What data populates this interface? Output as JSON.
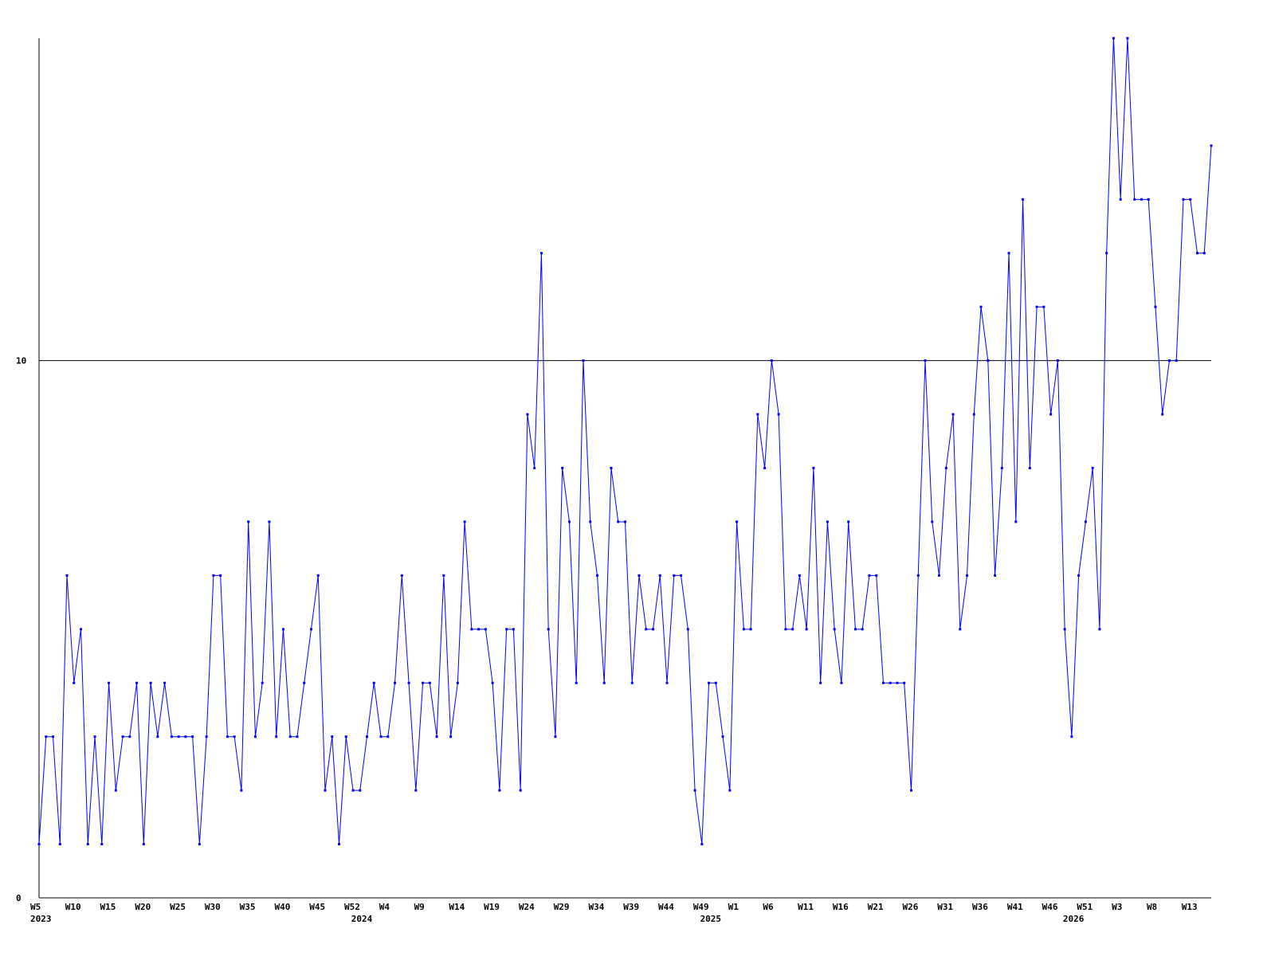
{
  "chart_data": {
    "type": "line",
    "categories": [
      "W5",
      null,
      null,
      null,
      null,
      "W10",
      null,
      null,
      null,
      null,
      "W15",
      null,
      null,
      null,
      null,
      "W20",
      null,
      null,
      null,
      null,
      "W25",
      null,
      null,
      null,
      null,
      "W30",
      null,
      null,
      null,
      null,
      "W35",
      null,
      null,
      null,
      null,
      "W40",
      null,
      null,
      null,
      null,
      "W45",
      null,
      null,
      null,
      null,
      "W52",
      null,
      null,
      null,
      null,
      "W4",
      null,
      null,
      null,
      null,
      "W9",
      null,
      null,
      null,
      null,
      "W14",
      null,
      null,
      null,
      null,
      "W19",
      null,
      null,
      null,
      null,
      "W24",
      null,
      null,
      null,
      null,
      "W29",
      null,
      null,
      null,
      null,
      "W34",
      null,
      null,
      null,
      null,
      "W39",
      null,
      null,
      null,
      null,
      "W44",
      null,
      null,
      null,
      null,
      "W49",
      null,
      null,
      null,
      null,
      "W1",
      null,
      null,
      null,
      null,
      "W6",
      null,
      null,
      null,
      null,
      "W11",
      null,
      null,
      null,
      null,
      "W16",
      null,
      null,
      null,
      null,
      "W21",
      null,
      null,
      null,
      null,
      "W26",
      null,
      null,
      null,
      null,
      "W31",
      null,
      null,
      null,
      null,
      "W36",
      null,
      null,
      null,
      null,
      "W41",
      null,
      null,
      null,
      null,
      "W46",
      null,
      null,
      null,
      null,
      "W51",
      null,
      null,
      null,
      null,
      "W3",
      null,
      null,
      null,
      null,
      "W8",
      null,
      null,
      null,
      null,
      "W13",
      null,
      null,
      null
    ],
    "years": [
      "2023",
      null,
      null,
      null,
      null,
      null,
      null,
      null,
      null,
      null,
      null,
      null,
      null,
      null,
      null,
      null,
      null,
      null,
      null,
      null,
      null,
      null,
      null,
      null,
      null,
      null,
      null,
      null,
      null,
      null,
      null,
      null,
      null,
      null,
      null,
      null,
      null,
      null,
      null,
      null,
      null,
      null,
      null,
      null,
      null,
      null,
      "2024",
      null,
      null,
      null,
      null,
      null,
      null,
      null,
      null,
      null,
      null,
      null,
      null,
      null,
      null,
      null,
      null,
      null,
      null,
      null,
      null,
      null,
      null,
      null,
      null,
      null,
      null,
      null,
      null,
      null,
      null,
      null,
      null,
      null,
      null,
      null,
      null,
      null,
      null,
      null,
      null,
      null,
      null,
      null,
      null,
      null,
      null,
      null,
      null,
      null,
      "2025",
      null,
      null,
      null,
      null,
      null,
      null,
      null,
      null,
      null,
      null,
      null,
      null,
      null,
      null,
      null,
      null,
      null,
      null,
      null,
      null,
      null,
      null,
      null,
      null,
      null,
      null,
      null,
      null,
      null,
      null,
      null,
      null,
      null,
      null,
      null,
      null,
      null,
      null,
      null,
      null,
      null,
      null,
      null,
      null,
      null,
      null,
      null,
      null,
      null,
      null,
      null,
      "2026",
      null,
      null,
      null,
      null,
      null,
      null,
      null,
      null,
      null,
      null,
      null,
      null,
      null,
      null,
      null,
      null
    ],
    "values": [
      1,
      3,
      3,
      1,
      6,
      4,
      5,
      1,
      3,
      1,
      4,
      2,
      3,
      3,
      4,
      1,
      4,
      3,
      4,
      3,
      3,
      3,
      3,
      1,
      3,
      6,
      6,
      3,
      3,
      2,
      7,
      3,
      4,
      7,
      3,
      5,
      3,
      3,
      4,
      5,
      6,
      2,
      3,
      1,
      3,
      2,
      2,
      3,
      4,
      3,
      3,
      4,
      6,
      4,
      2,
      4,
      4,
      3,
      6,
      3,
      4,
      7,
      5,
      5,
      5,
      4,
      2,
      5,
      5,
      2,
      9,
      8,
      12,
      5,
      3,
      8,
      7,
      4,
      10,
      7,
      6,
      4,
      8,
      7,
      7,
      4,
      6,
      5,
      5,
      6,
      4,
      6,
      6,
      5,
      2,
      1,
      4,
      4,
      3,
      2,
      7,
      5,
      5,
      9,
      8,
      10,
      9,
      5,
      5,
      6,
      5,
      8,
      4,
      7,
      5,
      4,
      7,
      5,
      5,
      6,
      6,
      4,
      4,
      4,
      4,
      2,
      6,
      10,
      7,
      6,
      8,
      9,
      5,
      6,
      9,
      11,
      10,
      6,
      8,
      12,
      7,
      13,
      8,
      11,
      11,
      9,
      10,
      5,
      3,
      6,
      7,
      8,
      5,
      12,
      16,
      13,
      16,
      13,
      13,
      13,
      11,
      9,
      10,
      10,
      13,
      13,
      12,
      12,
      14
    ],
    "color": "#0000ff",
    "ylim": [
      0,
      16
    ],
    "yticks": [
      0,
      10
    ],
    "grid": true
  }
}
